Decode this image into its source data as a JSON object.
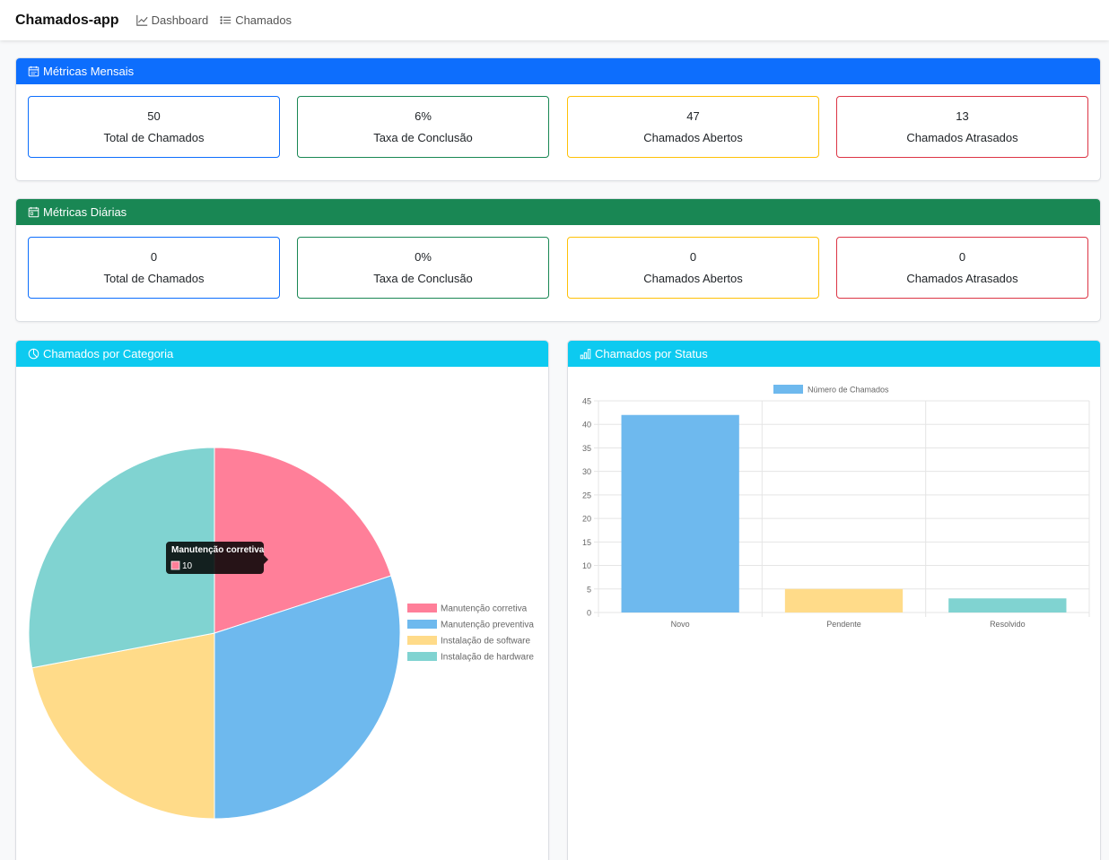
{
  "navbar": {
    "brand": "Chamados-app",
    "links": [
      {
        "label": "Dashboard",
        "icon": "graph-up-icon"
      },
      {
        "label": "Chamados",
        "icon": "list-icon"
      }
    ]
  },
  "monthly": {
    "title": "Métricas Mensais",
    "icon": "calendar-month-icon",
    "color": "#0d6efd",
    "metrics": [
      {
        "value": "50",
        "label": "Total de Chamados",
        "border": "#0d6efd"
      },
      {
        "value": "6%",
        "label": "Taxa de Conclusão",
        "border": "#198754"
      },
      {
        "value": "47",
        "label": "Chamados Abertos",
        "border": "#ffc107"
      },
      {
        "value": "13",
        "label": "Chamados Atrasados",
        "border": "#dc3545"
      }
    ]
  },
  "daily": {
    "title": "Métricas Diárias",
    "icon": "calendar-day-icon",
    "color": "#198754",
    "metrics": [
      {
        "value": "0",
        "label": "Total de Chamados",
        "border": "#0d6efd"
      },
      {
        "value": "0%",
        "label": "Taxa de Conclusão",
        "border": "#198754"
      },
      {
        "value": "0",
        "label": "Chamados Abertos",
        "border": "#ffc107"
      },
      {
        "value": "0",
        "label": "Chamados Atrasados",
        "border": "#dc3545"
      }
    ]
  },
  "category_panel": {
    "title": "Chamados por Categoria",
    "icon": "pie-chart-icon",
    "tooltip": {
      "title": "Manutenção corretiva",
      "value": "10"
    }
  },
  "status_panel": {
    "title": "Chamados por Status",
    "icon": "bar-chart-icon"
  },
  "colors": {
    "primary": "#0d6efd",
    "success": "#198754",
    "info": "#0dcaf0",
    "warning": "#ffc107",
    "danger": "#dc3545"
  },
  "chart_data": [
    {
      "type": "pie",
      "title": "",
      "categories": [
        "Manutenção corretiva",
        "Manutenção preventiva",
        "Instalação de software",
        "Instalação de hardware"
      ],
      "values": [
        10,
        15,
        11,
        14
      ],
      "colors": [
        "#ff7f99",
        "#6eb9ee",
        "#ffdb89",
        "#80d3d1"
      ],
      "legend": "right"
    },
    {
      "type": "bar",
      "title": "",
      "categories": [
        "Novo",
        "Pendente",
        "Resolvido"
      ],
      "series": [
        {
          "name": "Número de Chamados",
          "values": [
            42,
            5,
            3
          ]
        }
      ],
      "colors": [
        "#6eb9ee",
        "#ffdb89",
        "#80d3d1"
      ],
      "ylim": [
        0,
        45
      ],
      "yticks": [
        0,
        5,
        10,
        15,
        20,
        25,
        30,
        35,
        40,
        45
      ],
      "grid": true,
      "legend": "top"
    }
  ]
}
